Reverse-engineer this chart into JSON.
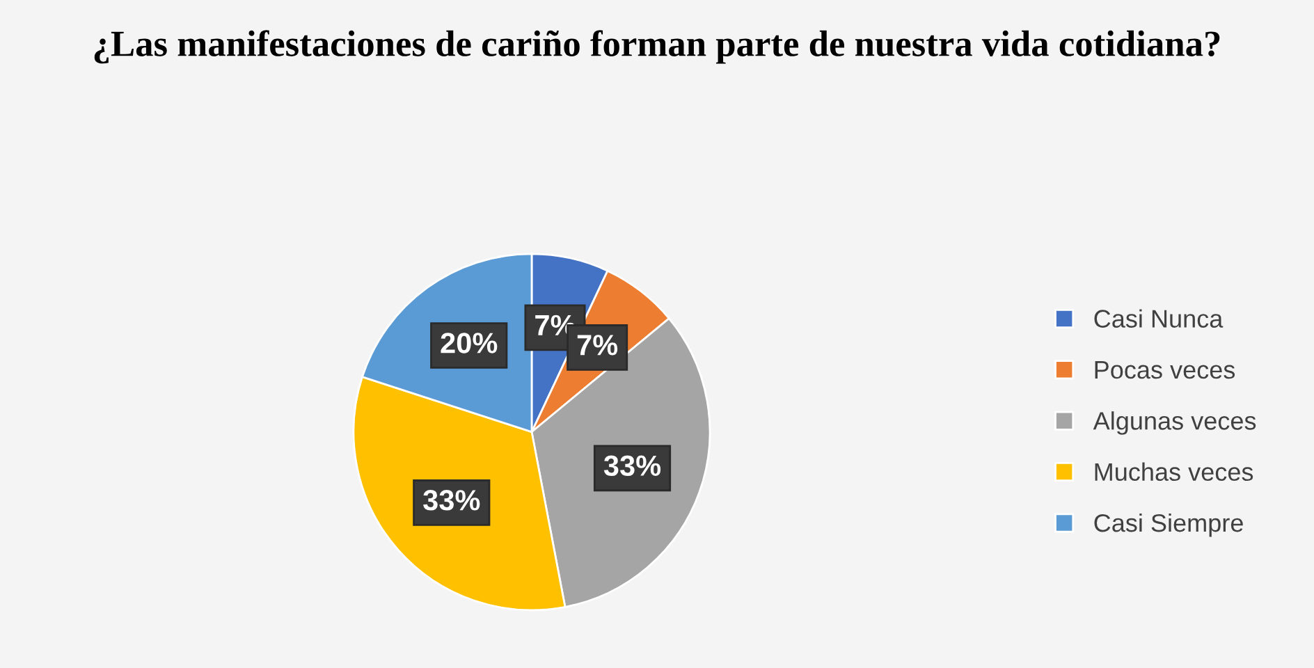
{
  "chart_data": {
    "type": "pie",
    "title": "¿Las manifestaciones de cariño forman parte de nuestra vida cotidiana?",
    "categories": [
      "Casi Nunca",
      "Pocas veces",
      "Algunas veces",
      "Muchas veces",
      "Casi Siempre"
    ],
    "values": [
      7,
      7,
      33,
      33,
      20
    ],
    "colors": [
      "#4472c4",
      "#ed7d31",
      "#a5a5a5",
      "#ffc000",
      "#5b9bd5"
    ],
    "value_labels": [
      "7%",
      "7%",
      "33%",
      "33%",
      "20%"
    ],
    "legend": "right"
  }
}
